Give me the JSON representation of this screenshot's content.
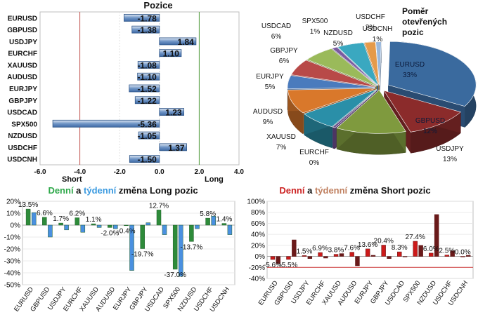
{
  "chart_data": [
    {
      "type": "bar",
      "orientation": "horizontal",
      "title": "Pozice",
      "categories": [
        "EURUSD",
        "GBPUSD",
        "USDJPY",
        "EURCHF",
        "XAUUSD",
        "AUDUSD",
        "EURJPY",
        "GBPJPY",
        "USDCAD",
        "SPX500",
        "NZDUSD",
        "USDCHF",
        "USDCNH"
      ],
      "values": [
        -1.78,
        -1.38,
        1.84,
        1.1,
        -1.08,
        -1.1,
        -1.52,
        -1.22,
        1.23,
        -5.36,
        -1.05,
        1.37,
        -1.5
      ],
      "value_labels": [
        "-1.78",
        "-1.38",
        "1.84",
        "1.10",
        "-1.08",
        "-1.10",
        "-1.52",
        "-1.22",
        "1.23",
        "-5.36",
        "-1.05",
        "1.37",
        "-1.50"
      ],
      "xlim": [
        -6,
        4
      ],
      "xticks": [
        "-6.0",
        "-4.0",
        "-2.0",
        "0.0",
        "2.0",
        "4.0"
      ],
      "annotations": {
        "short": "Short",
        "long": "Long"
      }
    },
    {
      "type": "pie",
      "title": "Poměr otevřených pozic",
      "title_lines": [
        "Poměr",
        "otevřených",
        "pozic"
      ],
      "slices": [
        {
          "label": "EURUSD",
          "pct": "33%",
          "value": 33,
          "color": "#3a6a9e"
        },
        {
          "label": "GBPUSD",
          "pct": "12%",
          "value": 12,
          "color": "#8b2b2b"
        },
        {
          "label": "USDJPY",
          "pct": "13%",
          "value": 13,
          "color": "#7f9a3e"
        },
        {
          "label": "EURCHF",
          "pct": "0%",
          "value": 0.5,
          "color": "#6a4a8a"
        },
        {
          "label": "XAUUSD",
          "pct": "7%",
          "value": 7,
          "color": "#2a8fa8"
        },
        {
          "label": "AUDUSD",
          "pct": "9%",
          "value": 9,
          "color": "#d9782b"
        },
        {
          "label": "EURJPY",
          "pct": "5%",
          "value": 5,
          "color": "#4a7bbd"
        },
        {
          "label": "GBPJPY",
          "pct": "6%",
          "value": 6,
          "color": "#b84a48"
        },
        {
          "label": "USDCAD",
          "pct": "6%",
          "value": 6,
          "color": "#9aba5a"
        },
        {
          "label": "SPX500",
          "pct": "1%",
          "value": 1,
          "color": "#7a5aa0"
        },
        {
          "label": "NZDUSD",
          "pct": "5%",
          "value": 5,
          "color": "#3aa8c0"
        },
        {
          "label": "USDCHF",
          "pct": "2%",
          "value": 2,
          "color": "#e59a4a"
        },
        {
          "label": "USDCNH",
          "pct": "1%",
          "value": 1,
          "color": "#9ab8dc"
        }
      ]
    },
    {
      "type": "bar",
      "title_parts": [
        {
          "text": "Denní",
          "color": "#2ea84a"
        },
        {
          "text": " a ",
          "color": "#111111"
        },
        {
          "text": "týdenní",
          "color": "#3a9ae0"
        },
        {
          "text": " změna Long pozic",
          "color": "#111111"
        }
      ],
      "categories": [
        "EURUSD",
        "GBPUSD",
        "USDJPY",
        "EURCHF",
        "XAUUSD",
        "AUDUSD",
        "EURJPY",
        "GBPJPY",
        "USDCAD",
        "SPX500",
        "NZDUSD",
        "USDCHF",
        "USDCNH"
      ],
      "series": [
        {
          "values": [
            13.5,
            6.6,
            1.7,
            6.2,
            1.1,
            -2.0,
            -0.4,
            -19.7,
            12.7,
            -37.0,
            -13.7,
            5.8,
            1.4
          ],
          "color": "#2e8b3a"
        },
        {
          "values": [
            10.5,
            -10.0,
            -4.0,
            -6.0,
            -2.0,
            -3.0,
            -38.0,
            2.0,
            -8.0,
            -43.0,
            -3.0,
            7.5,
            -8.0
          ],
          "color": "#4a90e0"
        }
      ],
      "data_labels": [
        "13.5%",
        "6.6%",
        "1.7%",
        "6.2%",
        "1.1%",
        "-2.0%",
        "-0.4%",
        "-19.7%",
        "12.7%",
        "-37.0%",
        "-13.7%",
        "5.8%",
        "1.4%"
      ],
      "ylim": [
        -50,
        20
      ],
      "yticks": [
        "20%",
        "10%",
        "0%",
        "-10%",
        "-20%",
        "-30%",
        "-40%",
        "-50%"
      ]
    },
    {
      "type": "bar",
      "title_parts": [
        {
          "text": "Denní",
          "color": "#cc2222"
        },
        {
          "text": " a ",
          "color": "#111111"
        },
        {
          "text": "týdenní",
          "color": "#c08060"
        },
        {
          "text": " změna Short pozic",
          "color": "#111111"
        }
      ],
      "categories": [
        "EURUSD",
        "GBPUSD",
        "USDJPY",
        "EURCHF",
        "XAUUSD",
        "AUDUSD",
        "EURJPY",
        "GBPJPY",
        "USDCAD",
        "SPX500",
        "NZDUSD",
        "USDCHF",
        "USDCNH"
      ],
      "series": [
        {
          "values": [
            -5.6,
            -5.5,
            1.5,
            6.9,
            3.8,
            7.6,
            13.6,
            20.4,
            8.3,
            27.4,
            6.0,
            2.5,
            0.0
          ],
          "color": "#cc1a1a"
        },
        {
          "values": [
            -13.0,
            30.0,
            -4.0,
            -3.0,
            5.0,
            -17.0,
            2.0,
            -4.0,
            0.0,
            20.0,
            76.0,
            10.0,
            2.0
          ],
          "color": "#6a1a1a"
        }
      ],
      "data_labels": [
        "-5.6%",
        "-5.5%",
        "1.5%",
        "6.9%",
        "3.8%",
        "7.6%",
        "13.6%",
        "20.4%",
        "8.3%",
        "27.4%",
        "6.0%",
        "2.5%",
        "0.0%"
      ],
      "ylim": [
        -40,
        100
      ],
      "yticks": [
        "100%",
        "80%",
        "60%",
        "40%",
        "20%",
        "0%",
        "-20%",
        "-40%"
      ]
    }
  ]
}
